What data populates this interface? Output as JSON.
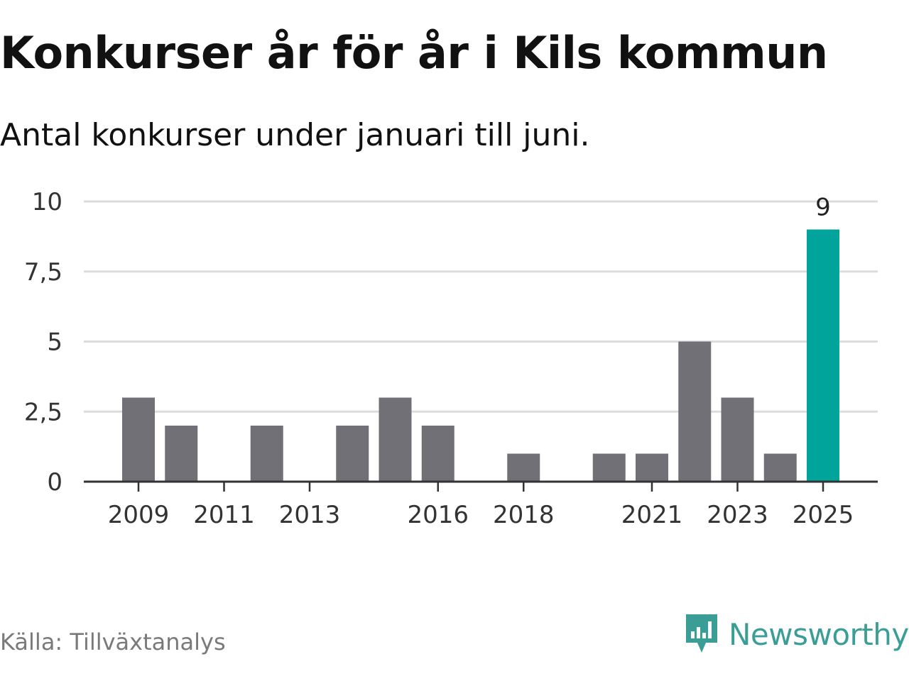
{
  "header": {
    "title": "Konkurser år för år i Kils kommun",
    "subtitle": "Antal konkurser under januari till juni."
  },
  "footer": {
    "source": "Källa: Tillväxtanalys",
    "brand": "Newsworthy",
    "brand_icon": "newsworthy-logo-icon",
    "brand_color": "#3b9e96"
  },
  "chart_data": {
    "type": "bar",
    "categories": [
      "2009",
      "2010",
      "2011",
      "2012",
      "2013",
      "2014",
      "2015",
      "2016",
      "2017",
      "2018",
      "2019",
      "2020",
      "2021",
      "2022",
      "2023",
      "2024",
      "2025"
    ],
    "values": [
      3,
      2,
      0,
      2,
      0,
      2,
      3,
      2,
      0,
      1,
      0,
      1,
      1,
      5,
      3,
      1,
      9
    ],
    "x_tick_labels": [
      "2009",
      "2011",
      "2013",
      "2016",
      "2018",
      "2021",
      "2023",
      "2025"
    ],
    "y_ticks": [
      0,
      2.5,
      5,
      7.5,
      10
    ],
    "y_tick_labels": [
      "0",
      "2,5",
      "5",
      "7,5",
      "10"
    ],
    "ylim": [
      0,
      10
    ],
    "grid": true,
    "highlight": {
      "category": "2025",
      "label": "9"
    },
    "bar_color": "#717076",
    "highlight_color": "#00a49a"
  }
}
